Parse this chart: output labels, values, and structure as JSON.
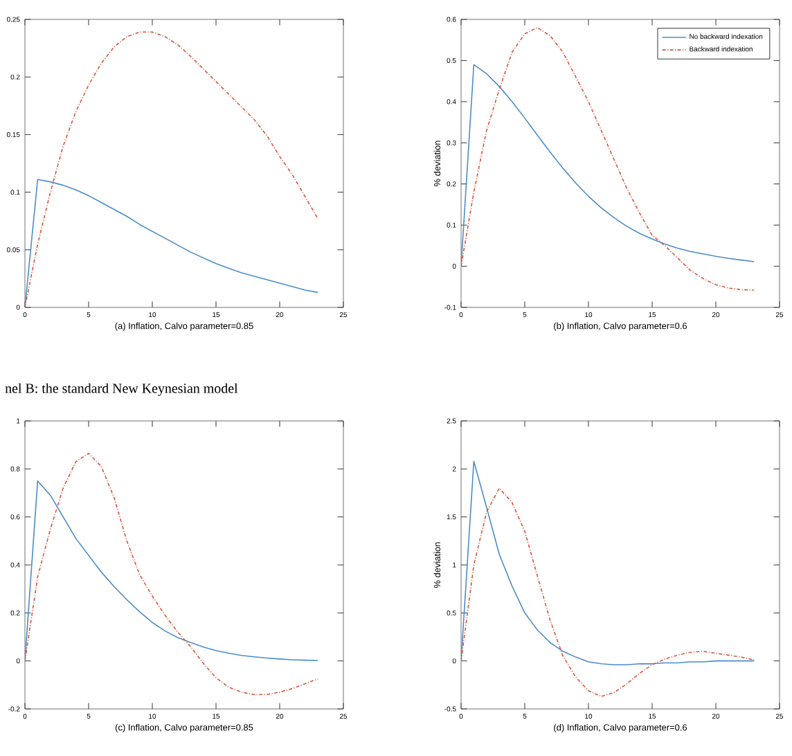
{
  "chart_data": [
    {
      "type": "line",
      "xlabel": "(a) Inflation, Calvo parameter=0.85",
      "x": [
        0,
        1,
        2,
        3,
        4,
        5,
        6,
        7,
        8,
        9,
        10,
        11,
        12,
        13,
        14,
        15,
        16,
        17,
        18,
        19,
        20,
        21,
        22,
        23
      ],
      "xlim": [
        0,
        25
      ],
      "xticks": [
        0,
        5,
        10,
        15,
        20,
        25
      ],
      "ylim": [
        0,
        0.25
      ],
      "yticks": [
        0,
        0.05,
        0.1,
        0.15,
        0.2,
        0.25
      ],
      "series": [
        {
          "color": "#4a8cc8",
          "line_style": "solid",
          "values": [
            0,
            0.111,
            0.109,
            0.106,
            0.102,
            0.097,
            0.091,
            0.085,
            0.079,
            0.072,
            0.066,
            0.06,
            0.054,
            0.048,
            0.043,
            0.038,
            0.034,
            0.03,
            0.027,
            0.024,
            0.021,
            0.018,
            0.015,
            0.013
          ]
        },
        {
          "color": "#d9553a",
          "line_style": "dashed",
          "values": [
            0,
            0.055,
            0.1,
            0.14,
            0.17,
            0.193,
            0.212,
            0.226,
            0.235,
            0.239,
            0.239,
            0.235,
            0.228,
            0.218,
            0.207,
            0.196,
            0.185,
            0.174,
            0.163,
            0.149,
            0.131,
            0.115,
            0.096,
            0.077
          ]
        }
      ]
    },
    {
      "type": "line",
      "xlabel": "(b) Inflation, Calvo parameter=0.6",
      "ylabel": "% deviation",
      "legend": "top right",
      "x": [
        0,
        1,
        2,
        3,
        4,
        5,
        6,
        7,
        8,
        9,
        10,
        11,
        12,
        13,
        14,
        15,
        16,
        17,
        18,
        19,
        20,
        21,
        22,
        23
      ],
      "xlim": [
        0,
        25
      ],
      "xticks": [
        0,
        5,
        10,
        15,
        20,
        25
      ],
      "ylim": [
        -0.1,
        0.6
      ],
      "yticks": [
        -0.1,
        0,
        0.1,
        0.2,
        0.3,
        0.4,
        0.5,
        0.6
      ],
      "series": [
        {
          "name": "No backward indexation",
          "color": "#4a8cc8",
          "line_style": "solid",
          "values": [
            0,
            0.49,
            0.468,
            0.437,
            0.4,
            0.36,
            0.318,
            0.277,
            0.238,
            0.202,
            0.17,
            0.142,
            0.118,
            0.097,
            0.08,
            0.066,
            0.054,
            0.044,
            0.036,
            0.03,
            0.024,
            0.019,
            0.015,
            0.011
          ]
        },
        {
          "name": "Backward indexation",
          "color": "#d9553a",
          "line_style": "dashed",
          "values": [
            0,
            0.18,
            0.33,
            0.43,
            0.52,
            0.565,
            0.58,
            0.56,
            0.52,
            0.46,
            0.4,
            0.33,
            0.26,
            0.19,
            0.13,
            0.075,
            0.05,
            0.02,
            -0.01,
            -0.03,
            -0.045,
            -0.053,
            -0.057,
            -0.058
          ]
        }
      ]
    },
    {
      "type": "line",
      "title": "nel B: the standard New Keynesian model",
      "xlabel": "(c) Inflation, Calvo parameter=0.85",
      "x": [
        0,
        1,
        2,
        3,
        4,
        5,
        6,
        7,
        8,
        9,
        10,
        11,
        12,
        13,
        14,
        15,
        16,
        17,
        18,
        19,
        20,
        21,
        22,
        23
      ],
      "xlim": [
        0,
        25
      ],
      "xticks": [
        0,
        5,
        10,
        15,
        20,
        25
      ],
      "ylim": [
        -0.2,
        1
      ],
      "yticks": [
        -0.2,
        0,
        0.2,
        0.4,
        0.6,
        0.8,
        1
      ],
      "series": [
        {
          "color": "#4a8cc8",
          "line_style": "solid",
          "values": [
            0,
            0.75,
            0.69,
            0.6,
            0.51,
            0.44,
            0.37,
            0.31,
            0.255,
            0.205,
            0.16,
            0.125,
            0.097,
            0.077,
            0.058,
            0.043,
            0.032,
            0.023,
            0.017,
            0.012,
            0.008,
            0.005,
            0.003,
            0.002
          ]
        },
        {
          "color": "#d9553a",
          "line_style": "dashed",
          "values": [
            0,
            0.35,
            0.55,
            0.72,
            0.83,
            0.865,
            0.81,
            0.68,
            0.5,
            0.36,
            0.27,
            0.19,
            0.12,
            0.06,
            -0.01,
            -0.07,
            -0.11,
            -0.13,
            -0.14,
            -0.14,
            -0.13,
            -0.115,
            -0.095,
            -0.075
          ]
        }
      ]
    },
    {
      "type": "line",
      "xlabel": "(d) Inflation, Calvo parameter=0.6",
      "ylabel": "% deviation",
      "x": [
        0,
        1,
        2,
        3,
        4,
        5,
        6,
        7,
        8,
        9,
        10,
        11,
        12,
        13,
        14,
        15,
        16,
        17,
        18,
        19,
        20,
        21,
        22,
        23
      ],
      "xlim": [
        0,
        25
      ],
      "xticks": [
        0,
        5,
        10,
        15,
        20,
        25
      ],
      "ylim": [
        -0.5,
        2.5
      ],
      "yticks": [
        -0.5,
        0,
        0.5,
        1,
        1.5,
        2,
        2.5
      ],
      "series": [
        {
          "color": "#4a8cc8",
          "line_style": "solid",
          "values": [
            0,
            2.08,
            1.6,
            1.11,
            0.78,
            0.5,
            0.32,
            0.19,
            0.1,
            0.04,
            -0.01,
            -0.03,
            -0.04,
            -0.04,
            -0.03,
            -0.03,
            -0.02,
            -0.02,
            -0.01,
            -0.01,
            0,
            0,
            0,
            0
          ]
        },
        {
          "color": "#d9553a",
          "line_style": "dashed",
          "values": [
            0,
            1.0,
            1.55,
            1.8,
            1.65,
            1.35,
            0.88,
            0.42,
            0.05,
            -0.17,
            -0.31,
            -0.37,
            -0.33,
            -0.24,
            -0.13,
            -0.04,
            0.02,
            0.06,
            0.09,
            0.1,
            0.08,
            0.06,
            0.04,
            0.01
          ]
        }
      ]
    }
  ]
}
